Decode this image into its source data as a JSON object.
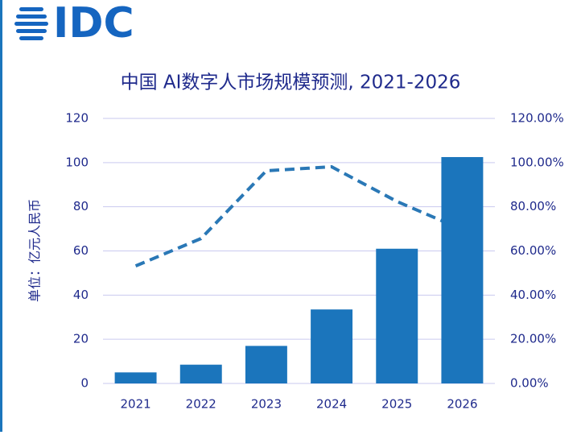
{
  "logo": "IDC",
  "chart_data": {
    "type": "bar",
    "title": "中国 AI数字人市场规模预测, 2021-2026",
    "y_axis_label": "单位：亿元人民币",
    "categories": [
      "2021",
      "2022",
      "2023",
      "2024",
      "2025",
      "2026"
    ],
    "series": [
      {
        "type": "bar",
        "color": "#1b75bc",
        "values": [
          5,
          8.5,
          17,
          33.5,
          61,
          102.5
        ]
      },
      {
        "type": "line",
        "axis": "y2",
        "line_style": "dashed",
        "color": "#2a78b6",
        "values": [
          53.2,
          65.6,
          96.3,
          98.1,
          82.4,
          69.7
        ]
      }
    ],
    "ylim": [
      0,
      120
    ],
    "yticks": [
      0,
      20,
      40,
      60,
      80,
      100,
      120
    ],
    "y2lim": [
      0,
      120
    ],
    "y2ticks": [
      {
        "value": 0,
        "label": "0.00%"
      },
      {
        "value": 20,
        "label": "20.00%"
      },
      {
        "value": 40,
        "label": "40.00%"
      },
      {
        "value": 60,
        "label": "60.00%"
      },
      {
        "value": 80,
        "label": "80.00%"
      },
      {
        "value": 100,
        "label": "100.00%"
      },
      {
        "value": 120,
        "label": "120.00%"
      }
    ],
    "grid": true
  }
}
